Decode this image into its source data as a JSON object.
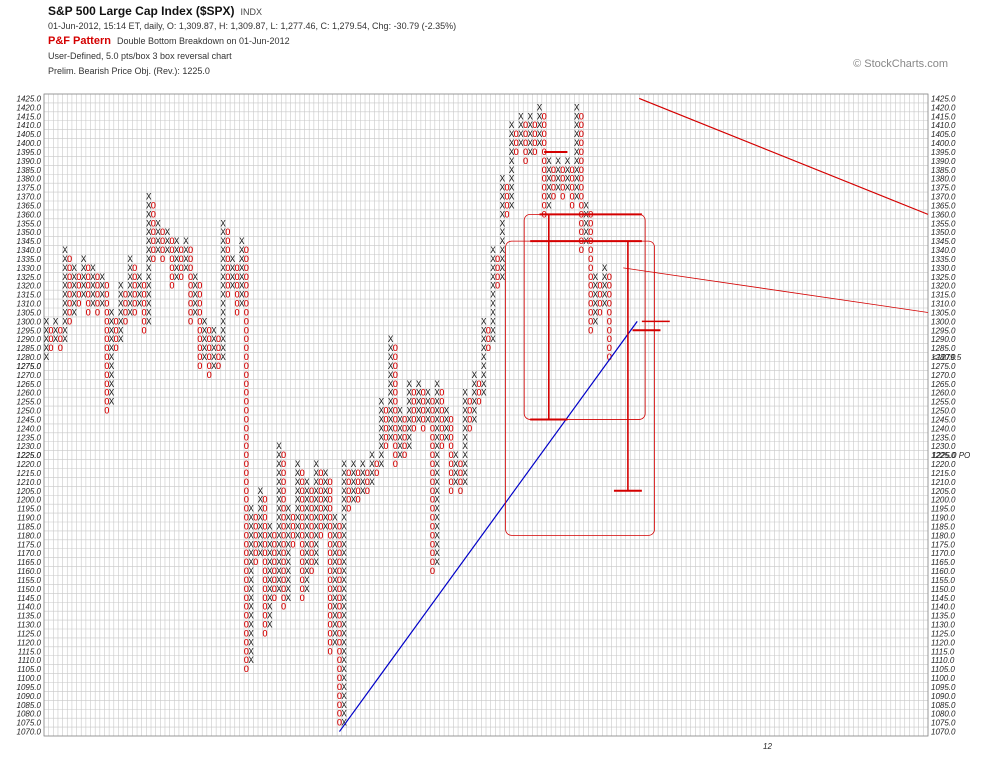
{
  "header": {
    "title": "S&P 500 Large Cap Index ($SPX)",
    "exchange": "INDX",
    "quote": "01-Jun-2012, 15:14 ET, daily, O: 1,309.87, H: 1,309.87, L: 1,277.46, C: 1,279.54, Chg: -30.79 (-2.35%)",
    "pattern_label": "P&F Pattern",
    "pattern_text": "Double Bottom Breakdown on 01-Jun-2012",
    "settings": "User-Defined, 5.0 pts/box 3 box reversal chart",
    "objective": "Prelim. Bearish Price Obj. (Rev.): 1225.0",
    "brand": "© StockCharts.com"
  },
  "colors": {
    "x": "#222222",
    "o": "#d40000",
    "grid": "#c8c8c8",
    "trend": "#0000c8",
    "resistance": "#d40000"
  },
  "chart_data": {
    "type": "point-and-figure",
    "box_size": 5,
    "reversal": 3,
    "ylim": [
      1070,
      1425
    ],
    "last_price_label": "1279.5",
    "price_objective_label": "1225.0 PO",
    "month_markers": [
      {
        "column": 48,
        "price": 1322.5,
        "label": "3"
      },
      {
        "column": 53,
        "price": 1297.5,
        "label": "2"
      },
      {
        "column": 66,
        "price": 1337.5,
        "label": "4"
      },
      {
        "column": 73,
        "price": 1367.5,
        "label": "5"
      },
      {
        "column": 78,
        "price": 1342.5,
        "label": "6"
      },
      {
        "column": 87,
        "price": 1322.5,
        "label": "7"
      },
      {
        "column": 91,
        "price": 1282.5,
        "label": "8"
      },
      {
        "column": 96,
        "price": 1227.5,
        "label": "9"
      },
      {
        "column": 116,
        "price": 1132.5,
        "label": "A"
      },
      {
        "column": 138,
        "price": 1252.5,
        "label": "B"
      },
      {
        "column": 144,
        "price": 1252.5,
        "label": "C"
      },
      {
        "column": 160,
        "price": 1257.5,
        "label": "1"
      },
      {
        "column": 163,
        "price": 1322.5,
        "label": "2"
      },
      {
        "column": 166,
        "price": 1372.5,
        "label": "3"
      },
      {
        "column": 174,
        "price": 1417.5,
        "label": "4"
      },
      {
        "column": 181,
        "price": 1402.5,
        "label": "5"
      },
      {
        "column": 185,
        "price": 1292.5,
        "label": "6"
      }
    ],
    "year_label": "12",
    "columns": [
      {
        "t": "X",
        "lo": 1280,
        "hi": 1300
      },
      {
        "t": "O",
        "lo": 1285,
        "hi": 1295
      },
      {
        "t": "X",
        "lo": 1290,
        "hi": 1300
      },
      {
        "t": "O",
        "lo": 1285,
        "hi": 1295
      },
      {
        "t": "X",
        "lo": 1290,
        "hi": 1340
      },
      {
        "t": "O",
        "lo": 1300,
        "hi": 1335
      },
      {
        "t": "X",
        "lo": 1305,
        "hi": 1330
      },
      {
        "t": "O",
        "lo": 1310,
        "hi": 1325
      },
      {
        "t": "X",
        "lo": 1315,
        "hi": 1335
      },
      {
        "t": "O",
        "lo": 1305,
        "hi": 1330
      },
      {
        "t": "X",
        "lo": 1310,
        "hi": 1330
      },
      {
        "t": "O",
        "lo": 1305,
        "hi": 1325
      },
      {
        "t": "X",
        "lo": 1310,
        "hi": 1325
      },
      {
        "t": "O",
        "lo": 1250,
        "hi": 1320
      },
      {
        "t": "X",
        "lo": 1255,
        "hi": 1305
      },
      {
        "t": "O",
        "lo": 1285,
        "hi": 1300
      },
      {
        "t": "X",
        "lo": 1290,
        "hi": 1320
      },
      {
        "t": "O",
        "lo": 1300,
        "hi": 1315
      },
      {
        "t": "X",
        "lo": 1305,
        "hi": 1335
      },
      {
        "t": "O",
        "lo": 1305,
        "hi": 1330
      },
      {
        "t": "X",
        "lo": 1310,
        "hi": 1325
      },
      {
        "t": "O",
        "lo": 1295,
        "hi": 1320
      },
      {
        "t": "X",
        "lo": 1300,
        "hi": 1370
      },
      {
        "t": "O",
        "lo": 1335,
        "hi": 1365
      },
      {
        "t": "X",
        "lo": 1340,
        "hi": 1355
      },
      {
        "t": "O",
        "lo": 1335,
        "hi": 1350
      },
      {
        "t": "X",
        "lo": 1340,
        "hi": 1350
      },
      {
        "t": "O",
        "lo": 1320,
        "hi": 1345
      },
      {
        "t": "X",
        "lo": 1325,
        "hi": 1345
      },
      {
        "t": "O",
        "lo": 1325,
        "hi": 1340
      },
      {
        "t": "X",
        "lo": 1330,
        "hi": 1345
      },
      {
        "t": "O",
        "lo": 1300,
        "hi": 1340
      },
      {
        "t": "X",
        "lo": 1305,
        "hi": 1325
      },
      {
        "t": "O",
        "lo": 1275,
        "hi": 1320
      },
      {
        "t": "X",
        "lo": 1280,
        "hi": 1300
      },
      {
        "t": "O",
        "lo": 1270,
        "hi": 1295
      },
      {
        "t": "X",
        "lo": 1275,
        "hi": 1295
      },
      {
        "t": "O",
        "lo": 1275,
        "hi": 1290
      },
      {
        "t": "X",
        "lo": 1280,
        "hi": 1355
      },
      {
        "t": "O",
        "lo": 1315,
        "hi": 1350
      },
      {
        "t": "X",
        "lo": 1320,
        "hi": 1335
      },
      {
        "t": "O",
        "lo": 1305,
        "hi": 1330
      },
      {
        "t": "X",
        "lo": 1310,
        "hi": 1345
      },
      {
        "t": "O",
        "lo": 1105,
        "hi": 1340
      },
      {
        "t": "X",
        "lo": 1110,
        "hi": 1195
      },
      {
        "t": "O",
        "lo": 1165,
        "hi": 1190
      },
      {
        "t": "X",
        "lo": 1170,
        "hi": 1205
      },
      {
        "t": "O",
        "lo": 1125,
        "hi": 1200
      },
      {
        "t": "X",
        "lo": 1130,
        "hi": 1185
      },
      {
        "t": "O",
        "lo": 1145,
        "hi": 1180
      },
      {
        "t": "X",
        "lo": 1150,
        "hi": 1230
      },
      {
        "t": "O",
        "lo": 1140,
        "hi": 1225
      },
      {
        "t": "X",
        "lo": 1145,
        "hi": 1195
      },
      {
        "t": "O",
        "lo": 1175,
        "hi": 1190
      },
      {
        "t": "X",
        "lo": 1180,
        "hi": 1220
      },
      {
        "t": "O",
        "lo": 1145,
        "hi": 1215
      },
      {
        "t": "X",
        "lo": 1150,
        "hi": 1210
      },
      {
        "t": "O",
        "lo": 1160,
        "hi": 1205
      },
      {
        "t": "X",
        "lo": 1165,
        "hi": 1220
      },
      {
        "t": "O",
        "lo": 1180,
        "hi": 1215
      },
      {
        "t": "X",
        "lo": 1185,
        "hi": 1215
      },
      {
        "t": "O",
        "lo": 1115,
        "hi": 1210
      },
      {
        "t": "X",
        "lo": 1120,
        "hi": 1190
      },
      {
        "t": "O",
        "lo": 1075,
        "hi": 1185
      },
      {
        "t": "X",
        "lo": 1075,
        "hi": 1220
      },
      {
        "t": "O",
        "lo": 1195,
        "hi": 1215
      },
      {
        "t": "X",
        "lo": 1200,
        "hi": 1220
      },
      {
        "t": "O",
        "lo": 1200,
        "hi": 1215
      },
      {
        "t": "X",
        "lo": 1205,
        "hi": 1220
      },
      {
        "t": "O",
        "lo": 1205,
        "hi": 1215
      },
      {
        "t": "X",
        "lo": 1210,
        "hi": 1225
      },
      {
        "t": "O",
        "lo": 1215,
        "hi": 1220
      },
      {
        "t": "X",
        "lo": 1220,
        "hi": 1255
      },
      {
        "t": "O",
        "lo": 1230,
        "hi": 1250
      },
      {
        "t": "X",
        "lo": 1235,
        "hi": 1290
      },
      {
        "t": "O",
        "lo": 1220,
        "hi": 1285
      },
      {
        "t": "X",
        "lo": 1225,
        "hi": 1250
      },
      {
        "t": "O",
        "lo": 1225,
        "hi": 1245
      },
      {
        "t": "X",
        "lo": 1230,
        "hi": 1265
      },
      {
        "t": "O",
        "lo": 1240,
        "hi": 1260
      },
      {
        "t": "X",
        "lo": 1245,
        "hi": 1265
      },
      {
        "t": "O",
        "lo": 1240,
        "hi": 1260
      },
      {
        "t": "X",
        "lo": 1245,
        "hi": 1260
      },
      {
        "t": "O",
        "lo": 1160,
        "hi": 1255
      },
      {
        "t": "X",
        "lo": 1165,
        "hi": 1265
      },
      {
        "t": "O",
        "lo": 1230,
        "hi": 1260
      },
      {
        "t": "X",
        "lo": 1235,
        "hi": 1250
      },
      {
        "t": "O",
        "lo": 1205,
        "hi": 1245
      },
      {
        "t": "X",
        "lo": 1210,
        "hi": 1225
      },
      {
        "t": "O",
        "lo": 1205,
        "hi": 1220
      },
      {
        "t": "X",
        "lo": 1210,
        "hi": 1260
      },
      {
        "t": "O",
        "lo": 1240,
        "hi": 1255
      },
      {
        "t": "X",
        "lo": 1245,
        "hi": 1270
      },
      {
        "t": "O",
        "lo": 1255,
        "hi": 1265
      },
      {
        "t": "X",
        "lo": 1260,
        "hi": 1300
      },
      {
        "t": "O",
        "lo": 1285,
        "hi": 1295
      },
      {
        "t": "X",
        "lo": 1290,
        "hi": 1340
      },
      {
        "t": "O",
        "lo": 1320,
        "hi": 1335
      },
      {
        "t": "X",
        "lo": 1325,
        "hi": 1380
      },
      {
        "t": "O",
        "lo": 1360,
        "hi": 1375
      },
      {
        "t": "X",
        "lo": 1365,
        "hi": 1410
      },
      {
        "t": "O",
        "lo": 1395,
        "hi": 1405
      },
      {
        "t": "X",
        "lo": 1400,
        "hi": 1415
      },
      {
        "t": "O",
        "lo": 1390,
        "hi": 1410
      },
      {
        "t": "X",
        "lo": 1395,
        "hi": 1415
      },
      {
        "t": "O",
        "lo": 1395,
        "hi": 1410
      },
      {
        "t": "X",
        "lo": 1400,
        "hi": 1420
      },
      {
        "t": "O",
        "lo": 1360,
        "hi": 1415
      },
      {
        "t": "X",
        "lo": 1365,
        "hi": 1390
      },
      {
        "t": "O",
        "lo": 1370,
        "hi": 1385
      },
      {
        "t": "X",
        "lo": 1375,
        "hi": 1390
      },
      {
        "t": "O",
        "lo": 1370,
        "hi": 1385
      },
      {
        "t": "X",
        "lo": 1375,
        "hi": 1390
      },
      {
        "t": "O",
        "lo": 1365,
        "hi": 1385
      },
      {
        "t": "X",
        "lo": 1370,
        "hi": 1420
      },
      {
        "t": "O",
        "lo": 1340,
        "hi": 1415
      },
      {
        "t": "X",
        "lo": 1345,
        "hi": 1365
      },
      {
        "t": "O",
        "lo": 1295,
        "hi": 1360
      },
      {
        "t": "X",
        "lo": 1300,
        "hi": 1325
      },
      {
        "t": "O",
        "lo": 1305,
        "hi": 1320
      },
      {
        "t": "X",
        "lo": 1310,
        "hi": 1330
      },
      {
        "t": "O",
        "lo": 1280,
        "hi": 1325
      }
    ]
  }
}
